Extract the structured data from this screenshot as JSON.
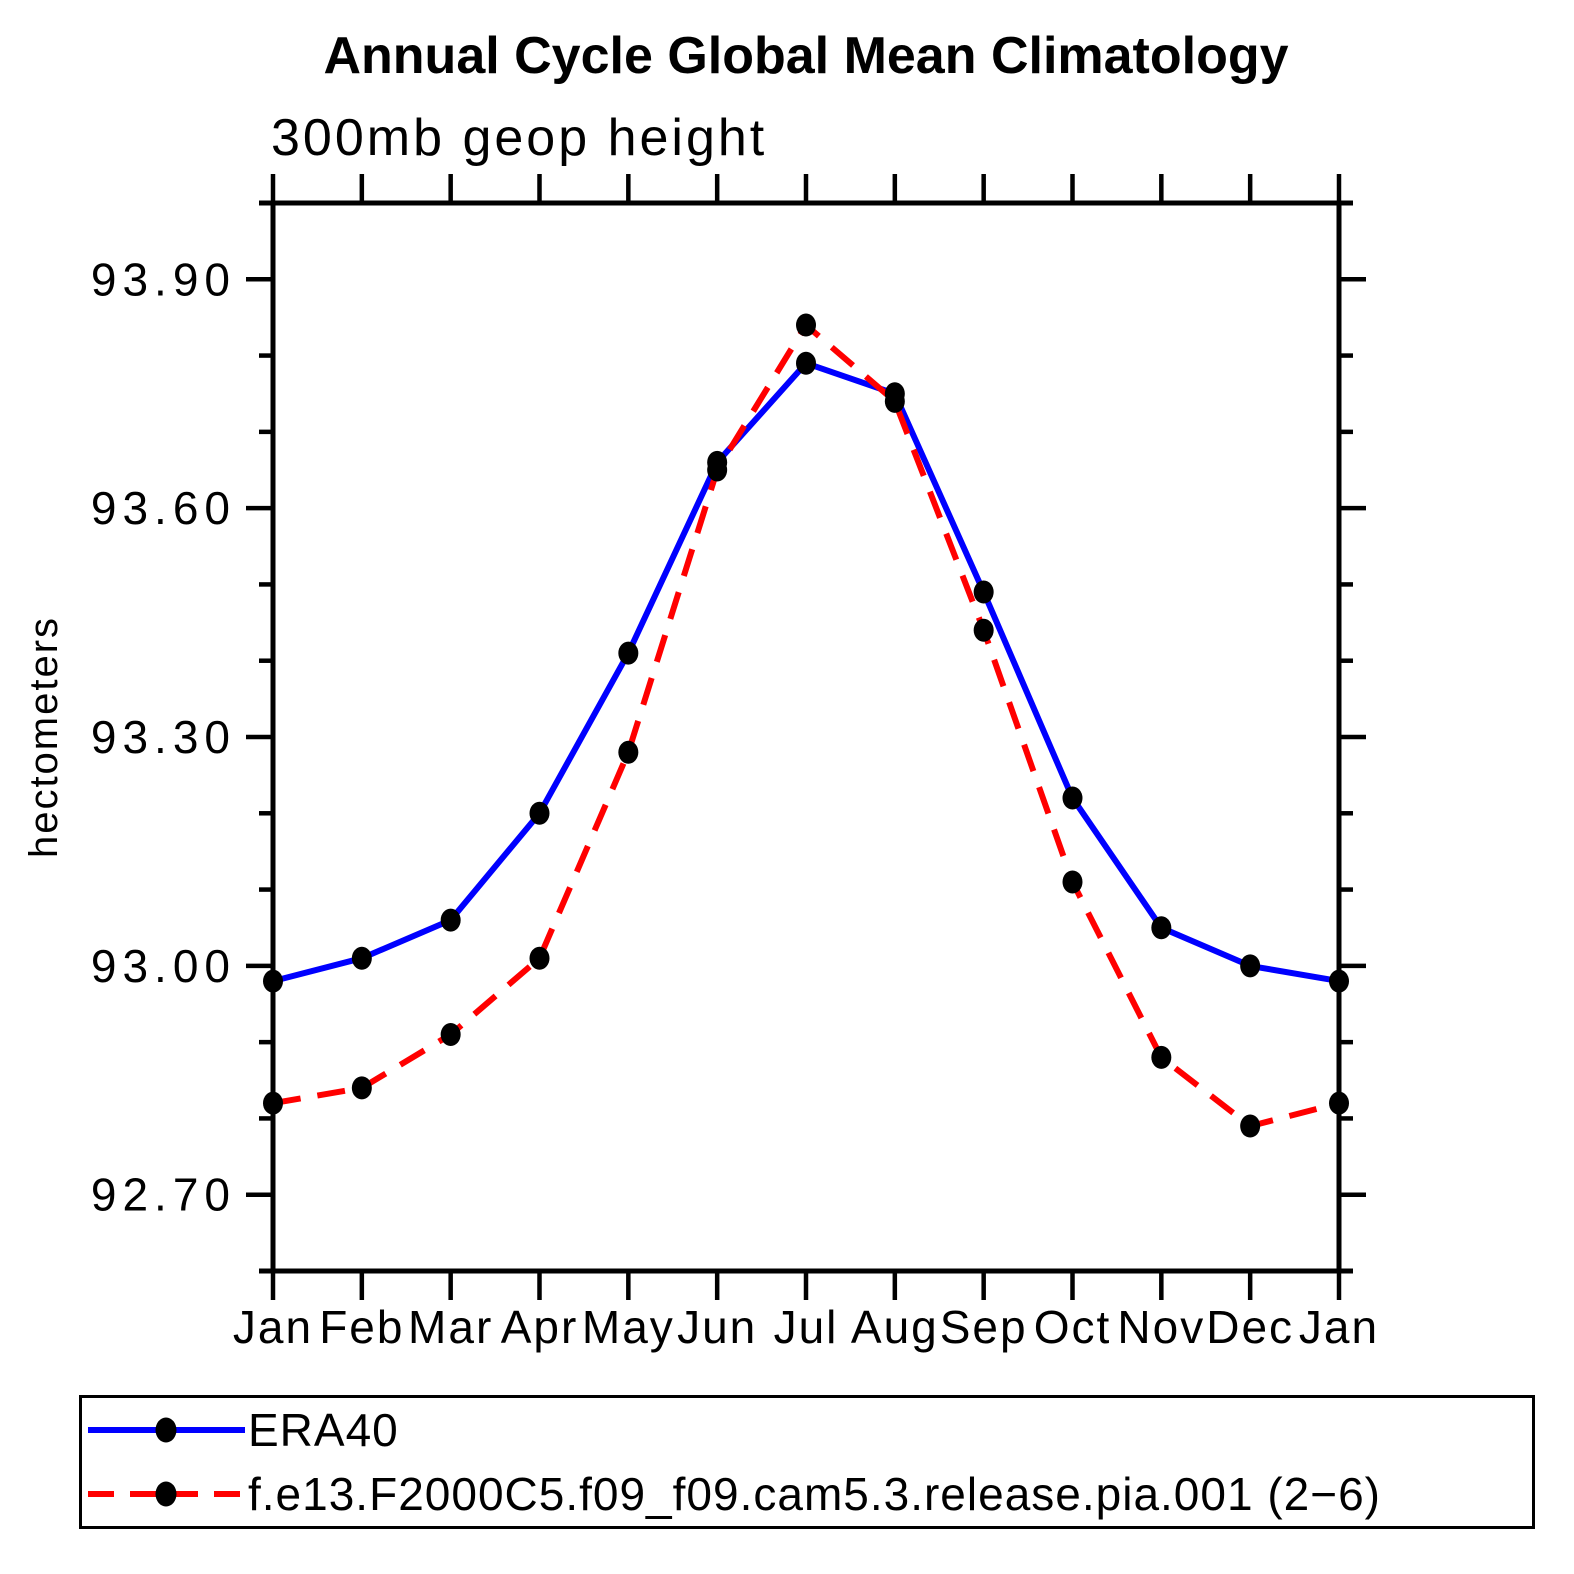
{
  "chart_data": {
    "type": "line",
    "title": "Annual Cycle Global Mean Climatology",
    "subtitle": "300mb geop height",
    "ylabel": "hectometers",
    "xlabel": "",
    "categories": [
      "Jan",
      "Feb",
      "Mar",
      "Apr",
      "May",
      "Jun",
      "Jul",
      "Aug",
      "Sep",
      "Oct",
      "Nov",
      "Dec",
      "Jan"
    ],
    "ylim": [
      92.6,
      94.0
    ],
    "ytick_labels": [
      "93.90",
      "93.60",
      "93.30",
      "93.00",
      "92.70"
    ],
    "ytick_values": [
      93.9,
      93.6,
      93.3,
      93.0,
      92.7
    ],
    "ytick_minor_values": [
      92.8,
      92.9,
      93.1,
      93.2,
      93.4,
      93.5,
      93.7,
      93.8
    ],
    "grid": false,
    "legend_position": "bottom",
    "axis_color": "#000000",
    "marker_color": "#000000",
    "series": [
      {
        "name": "ERA40",
        "color": "#0000ff",
        "line_style": "solid",
        "values": [
          92.98,
          93.01,
          93.06,
          93.2,
          93.41,
          93.66,
          93.79,
          93.75,
          93.49,
          93.22,
          93.05,
          93.0,
          92.98
        ]
      },
      {
        "name": "f.e13.F2000C5.f09_f09.cam5.3.release.pia.001 (2−6)",
        "color": "#ff0000",
        "line_style": "dashed",
        "values": [
          92.82,
          92.84,
          92.91,
          93.01,
          93.28,
          93.65,
          93.84,
          93.74,
          93.44,
          93.11,
          92.88,
          92.79,
          92.82
        ]
      }
    ]
  }
}
